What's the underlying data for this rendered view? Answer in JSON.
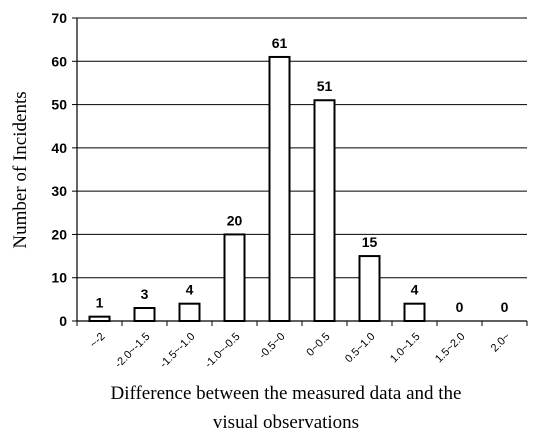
{
  "chart_data": {
    "type": "bar",
    "title": "",
    "xlabel_lines": [
      "Difference between the measured data and the",
      "visual observations"
    ],
    "ylabel": "Number of Incidents",
    "categories": [
      "~-2",
      "-2.0~-1.5",
      "-1.5~-1.0",
      "-1.0~-0.5",
      "-0.5~0",
      "0~0.5",
      "0.5~1.0",
      "1.0~1.5",
      "1.5~2.0",
      "2.0~"
    ],
    "values": [
      1,
      3,
      4,
      20,
      61,
      51,
      15,
      4,
      0,
      0
    ],
    "ylim": [
      0,
      70
    ],
    "yticks": [
      0,
      10,
      20,
      30,
      40,
      50,
      60,
      70
    ],
    "grid": true,
    "legend": "none",
    "colors": {
      "bar_fill": "#ffffff",
      "bar_stroke": "#000000",
      "grid": "#000000"
    }
  }
}
